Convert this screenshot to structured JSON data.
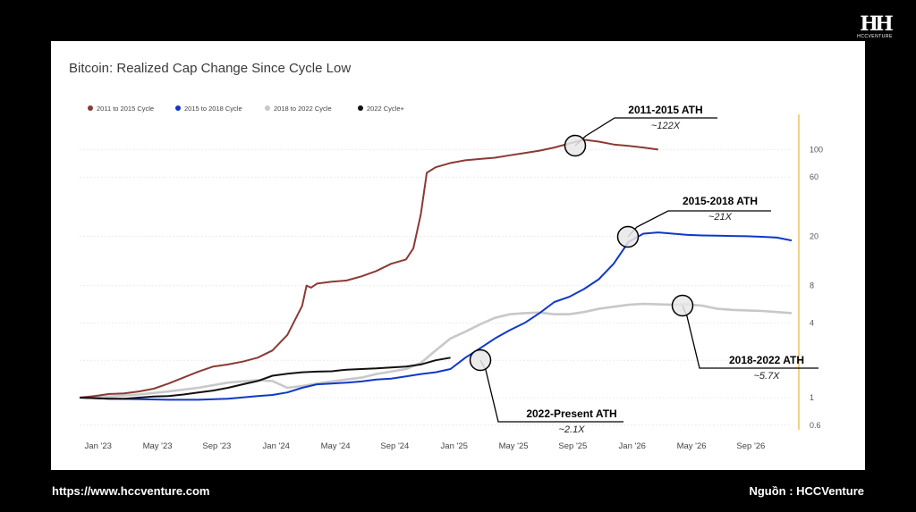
{
  "footer": {
    "url": "https://www.hccventure.com",
    "source": "Nguồn : HCCVenture"
  },
  "logo": {
    "mark": "HH",
    "text": "HCCVENTURE"
  },
  "chart_data": {
    "type": "line",
    "title": "Bitcoin: Realized Cap Change Since Cycle Low",
    "y_scale": "log",
    "ylim": [
      0.55,
      180
    ],
    "y_ticks": [
      0.6,
      1,
      4,
      8,
      20,
      60,
      100
    ],
    "x_ticks": [
      "Jan '23",
      "May '23",
      "Sep '23",
      "Jan '24",
      "May '24",
      "Sep '24",
      "Jan '25",
      "May '25",
      "Sep '25",
      "Jan '26",
      "May '26",
      "Sep '26"
    ],
    "x_range": [
      "2022-11",
      "2026-11"
    ],
    "legend_position": "top-left",
    "grid": true,
    "colors": {
      "c2011": "#8b3a34",
      "c2015": "#1038c8",
      "c2018": "#c8c8c8",
      "c2022": "#111111",
      "axis_line": "#f0c060"
    },
    "series": [
      {
        "name": "2011 to 2015 Cycle",
        "color": "#8b3a34",
        "points": [
          [
            0,
            1
          ],
          [
            1,
            1.03
          ],
          [
            2,
            1.07
          ],
          [
            3,
            1.08
          ],
          [
            4,
            1.12
          ],
          [
            5,
            1.18
          ],
          [
            6,
            1.3
          ],
          [
            7,
            1.45
          ],
          [
            8,
            1.62
          ],
          [
            9,
            1.78
          ],
          [
            10,
            1.85
          ],
          [
            11,
            1.95
          ],
          [
            12,
            2.1
          ],
          [
            13,
            2.4
          ],
          [
            14,
            3.2
          ],
          [
            15,
            5.5
          ],
          [
            15.3,
            8
          ],
          [
            15.6,
            7.7
          ],
          [
            16,
            8.3
          ],
          [
            17,
            8.6
          ],
          [
            18,
            8.8
          ],
          [
            19,
            9.5
          ],
          [
            20,
            10.5
          ],
          [
            21,
            12
          ],
          [
            22,
            13
          ],
          [
            22.5,
            16
          ],
          [
            23,
            30
          ],
          [
            23.4,
            65
          ],
          [
            24,
            72
          ],
          [
            25,
            78
          ],
          [
            26,
            82
          ],
          [
            27,
            84
          ],
          [
            28,
            86
          ],
          [
            29,
            90
          ],
          [
            30,
            94
          ],
          [
            31,
            98
          ],
          [
            32,
            104
          ],
          [
            33,
            112
          ],
          [
            34,
            120
          ],
          [
            35,
            116
          ],
          [
            36,
            110
          ],
          [
            37,
            107
          ],
          [
            38,
            104
          ],
          [
            39,
            100
          ]
        ]
      },
      {
        "name": "2015 to 2018 Cycle",
        "color": "#1038c8",
        "points": [
          [
            0,
            1
          ],
          [
            2,
            0.98
          ],
          [
            4,
            0.97
          ],
          [
            6,
            0.96
          ],
          [
            8,
            0.96
          ],
          [
            10,
            0.98
          ],
          [
            12,
            1.03
          ],
          [
            13,
            1.05
          ],
          [
            14,
            1.1
          ],
          [
            15,
            1.2
          ],
          [
            16,
            1.28
          ],
          [
            17,
            1.3
          ],
          [
            18,
            1.32
          ],
          [
            19,
            1.35
          ],
          [
            20,
            1.4
          ],
          [
            21,
            1.42
          ],
          [
            22,
            1.48
          ],
          [
            23,
            1.55
          ],
          [
            24,
            1.6
          ],
          [
            25,
            1.7
          ],
          [
            26,
            2.1
          ],
          [
            27,
            2.5
          ],
          [
            28,
            3.0
          ],
          [
            29,
            3.5
          ],
          [
            30,
            4.0
          ],
          [
            31,
            4.8
          ],
          [
            32,
            5.9
          ],
          [
            33,
            6.5
          ],
          [
            34,
            7.5
          ],
          [
            35,
            9.0
          ],
          [
            36,
            12
          ],
          [
            37,
            18
          ],
          [
            38,
            21
          ],
          [
            39,
            21.5
          ],
          [
            40,
            21
          ],
          [
            41,
            20.5
          ],
          [
            42,
            20.3
          ],
          [
            43,
            20.2
          ],
          [
            44,
            20.1
          ],
          [
            45,
            20
          ],
          [
            46,
            19.8
          ],
          [
            47,
            19.5
          ],
          [
            48,
            18.5
          ]
        ]
      },
      {
        "name": "2018 to 2022 Cycle",
        "color": "#c8c8c8",
        "points": [
          [
            0,
            1
          ],
          [
            2,
            1.02
          ],
          [
            4,
            1.06
          ],
          [
            6,
            1.12
          ],
          [
            8,
            1.2
          ],
          [
            10,
            1.32
          ],
          [
            12,
            1.38
          ],
          [
            13,
            1.36
          ],
          [
            14,
            1.2
          ],
          [
            15,
            1.24
          ],
          [
            16,
            1.3
          ],
          [
            17,
            1.35
          ],
          [
            18,
            1.4
          ],
          [
            19,
            1.45
          ],
          [
            20,
            1.55
          ],
          [
            21,
            1.62
          ],
          [
            22,
            1.7
          ],
          [
            23,
            1.9
          ],
          [
            24,
            2.4
          ],
          [
            25,
            3.0
          ],
          [
            26,
            3.4
          ],
          [
            27,
            3.9
          ],
          [
            28,
            4.4
          ],
          [
            29,
            4.7
          ],
          [
            30,
            4.8
          ],
          [
            31,
            4.85
          ],
          [
            32,
            4.7
          ],
          [
            33,
            4.7
          ],
          [
            34,
            4.9
          ],
          [
            35,
            5.2
          ],
          [
            36,
            5.4
          ],
          [
            37,
            5.6
          ],
          [
            38,
            5.7
          ],
          [
            39,
            5.65
          ],
          [
            40,
            5.6
          ],
          [
            41,
            5.65
          ],
          [
            42,
            5.5
          ],
          [
            43,
            5.2
          ],
          [
            44,
            5.1
          ],
          [
            45,
            5.05
          ],
          [
            46,
            5.0
          ],
          [
            47,
            4.9
          ],
          [
            48,
            4.8
          ]
        ]
      },
      {
        "name": "2022 Cycle+",
        "color": "#111111",
        "points": [
          [
            0,
            1
          ],
          [
            1,
            0.99
          ],
          [
            2,
            0.98
          ],
          [
            3,
            0.98
          ],
          [
            4,
            1.0
          ],
          [
            5,
            1.02
          ],
          [
            6,
            1.03
          ],
          [
            7,
            1.06
          ],
          [
            8,
            1.1
          ],
          [
            9,
            1.14
          ],
          [
            10,
            1.2
          ],
          [
            11,
            1.28
          ],
          [
            12,
            1.36
          ],
          [
            13,
            1.5
          ],
          [
            14,
            1.56
          ],
          [
            15,
            1.6
          ],
          [
            16,
            1.62
          ],
          [
            17,
            1.63
          ],
          [
            18,
            1.68
          ],
          [
            19,
            1.7
          ],
          [
            20,
            1.72
          ],
          [
            21,
            1.75
          ],
          [
            22,
            1.78
          ],
          [
            23,
            1.85
          ],
          [
            24,
            2.0
          ],
          [
            25,
            2.1
          ]
        ]
      }
    ],
    "annotations": [
      {
        "label": "2011-2015 ATH",
        "value": "~122X"
      },
      {
        "label": "2015-2018 ATH",
        "value": "~21X"
      },
      {
        "label": "2018-2022 ATH",
        "value": "~5.7X"
      },
      {
        "label": "2022-Present ATH",
        "value": "~2.1X"
      }
    ]
  }
}
